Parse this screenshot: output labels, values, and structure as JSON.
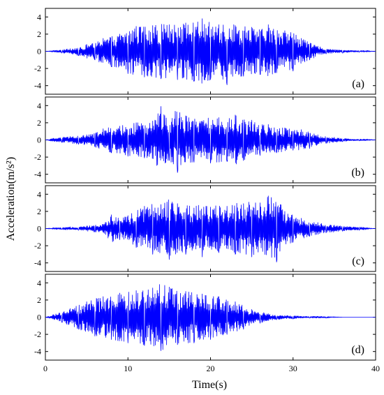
{
  "chart_data": [
    {
      "type": "line",
      "panel_label": "(a)",
      "xlim": [
        0,
        40
      ],
      "ylim": [
        -5,
        5
      ],
      "x_ticks": [
        0,
        10,
        20,
        30,
        40
      ],
      "y_ticks": [
        -4,
        -2,
        0,
        2,
        4
      ],
      "show_x_tick_labels": false,
      "color": "#0000ff",
      "series": [
        {
          "x": [
            0,
            1,
            2,
            3,
            4,
            5,
            6,
            7,
            8,
            9,
            10,
            11,
            12,
            13,
            14,
            15,
            16,
            17,
            18,
            19,
            20,
            21,
            22,
            23,
            24,
            25,
            26,
            27,
            28,
            29,
            30,
            31,
            32,
            33,
            34,
            35,
            36,
            37,
            38,
            39,
            40
          ],
          "values": [
            0,
            0.1,
            -0.2,
            0.3,
            -0.5,
            0.8,
            -1.0,
            1.5,
            -1.8,
            2.0,
            -2.6,
            2.9,
            -3.0,
            3.0,
            -3.2,
            3.1,
            -3.3,
            3.3,
            -3.5,
            3.8,
            -3.3,
            3.1,
            -3.9,
            3.0,
            -2.9,
            2.8,
            -2.7,
            3.1,
            -2.5,
            2.4,
            -2.3,
            1.5,
            -1.0,
            0.6,
            -0.3,
            0.2,
            -0.2,
            0.1,
            -0.1,
            0.1,
            0
          ]
        }
      ]
    },
    {
      "type": "line",
      "panel_label": "(b)",
      "xlim": [
        0,
        40
      ],
      "ylim": [
        -5,
        5
      ],
      "x_ticks": [
        0,
        10,
        20,
        30,
        40
      ],
      "y_ticks": [
        -4,
        -2,
        0,
        2,
        4
      ],
      "show_x_tick_labels": false,
      "color": "#0000ff",
      "series": [
        {
          "x": [
            0,
            1,
            2,
            3,
            4,
            5,
            6,
            7,
            8,
            9,
            10,
            11,
            12,
            13,
            14,
            15,
            16,
            17,
            18,
            19,
            20,
            21,
            22,
            23,
            24,
            25,
            26,
            27,
            28,
            29,
            30,
            31,
            32,
            33,
            34,
            35,
            36,
            37,
            38,
            39,
            40
          ],
          "values": [
            0,
            0.2,
            -0.3,
            0.4,
            -0.5,
            0.6,
            -0.8,
            1.3,
            -1.5,
            1.6,
            -1.9,
            2.0,
            -2.1,
            2.2,
            3.9,
            -2.4,
            -3.8,
            2.8,
            -2.6,
            2.2,
            -2.7,
            2.6,
            -2.5,
            2.9,
            -2.4,
            2.3,
            -1.8,
            1.8,
            -1.5,
            1.4,
            -1.2,
            1.2,
            -1.0,
            0.6,
            -0.4,
            0.3,
            -0.2,
            0.1,
            -0.1,
            0.1,
            0
          ]
        }
      ]
    },
    {
      "type": "line",
      "panel_label": "(c)",
      "xlim": [
        0,
        40
      ],
      "ylim": [
        -5,
        5
      ],
      "x_ticks": [
        0,
        10,
        20,
        30,
        40
      ],
      "y_ticks": [
        -4,
        -2,
        0,
        2,
        4
      ],
      "show_x_tick_labels": false,
      "color": "#0000ff",
      "series": [
        {
          "x": [
            0,
            1,
            2,
            3,
            4,
            5,
            6,
            7,
            8,
            9,
            10,
            11,
            12,
            13,
            14,
            15,
            16,
            17,
            18,
            19,
            20,
            21,
            22,
            23,
            24,
            25,
            26,
            27,
            28,
            29,
            30,
            31,
            32,
            33,
            34,
            35,
            36,
            37,
            38,
            39,
            40
          ],
          "values": [
            0,
            0.1,
            -0.1,
            0.2,
            -0.2,
            0.3,
            -0.4,
            0.5,
            1.6,
            -1.3,
            1.5,
            -2.2,
            2.6,
            -3.0,
            2.8,
            -3.6,
            2.9,
            -3.0,
            2.4,
            -3.3,
            2.5,
            -2.8,
            2.6,
            -3.0,
            2.9,
            -3.3,
            3.0,
            3.8,
            -3.9,
            2.0,
            -1.6,
            1.2,
            -0.9,
            0.7,
            -0.5,
            0.4,
            -0.3,
            0.2,
            -0.2,
            0.1,
            0
          ]
        }
      ]
    },
    {
      "type": "line",
      "panel_label": "(d)",
      "xlim": [
        0,
        40
      ],
      "ylim": [
        -5,
        5
      ],
      "x_ticks": [
        0,
        10,
        20,
        30,
        40
      ],
      "y_ticks": [
        -4,
        -2,
        0,
        2,
        4
      ],
      "show_x_tick_labels": true,
      "color": "#0000ff",
      "series": [
        {
          "x": [
            0,
            1,
            2,
            3,
            4,
            5,
            6,
            7,
            8,
            9,
            10,
            11,
            12,
            13,
            14,
            15,
            16,
            17,
            18,
            19,
            20,
            21,
            22,
            23,
            24,
            25,
            26,
            27,
            28,
            29,
            30,
            31,
            32,
            33,
            34,
            35,
            36,
            37,
            38,
            39,
            40
          ],
          "values": [
            0,
            0.3,
            -0.6,
            1.0,
            -1.4,
            1.8,
            -2.2,
            2.4,
            -2.6,
            2.8,
            -3.0,
            3.1,
            -3.3,
            3.4,
            -3.9,
            3.5,
            -3.2,
            3.0,
            -3.0,
            2.7,
            -2.6,
            2.4,
            -2.0,
            1.8,
            -1.4,
            0.9,
            -0.7,
            0.4,
            -0.3,
            0.2,
            -0.2,
            0.1,
            -0.1,
            0.1,
            -0.1,
            0.05,
            0,
            0,
            0,
            0,
            0
          ]
        }
      ]
    }
  ],
  "axes": {
    "xlabel": "Time(s)",
    "ylabel": "Acceleration(m/s²)"
  }
}
